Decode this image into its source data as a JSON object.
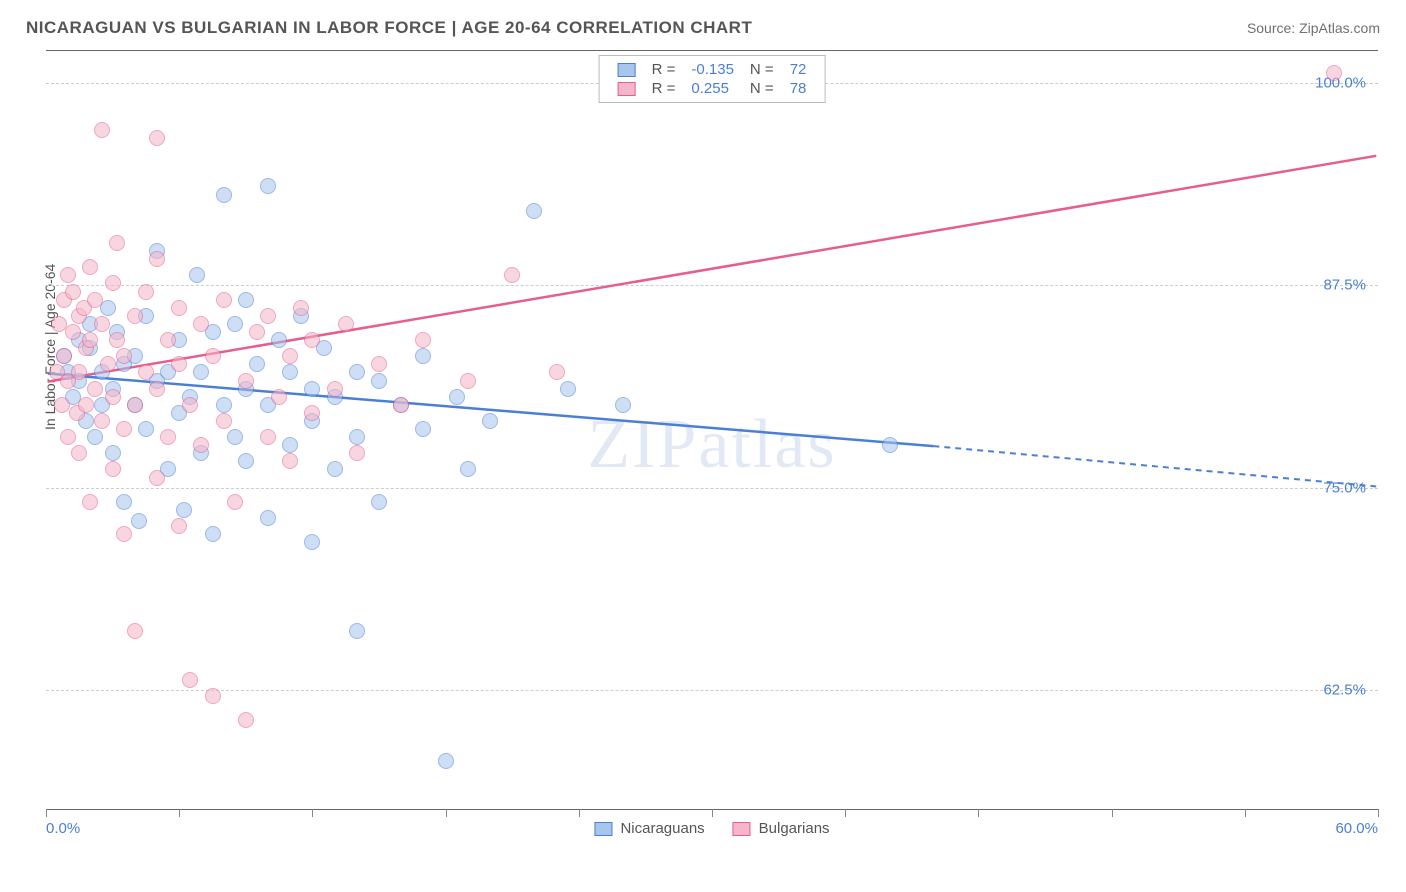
{
  "title": "NICARAGUAN VS BULGARIAN IN LABOR FORCE | AGE 20-64 CORRELATION CHART",
  "source_label": "Source: ",
  "source_name": "ZipAtlas.com",
  "ylabel": "In Labor Force | Age 20-64",
  "watermark": "ZIPatlas",
  "chart": {
    "type": "scatter",
    "xlim": [
      0,
      60
    ],
    "ylim": [
      55,
      102
    ],
    "x_ticks": [
      0,
      6,
      12,
      18,
      24,
      30,
      36,
      42,
      48,
      54,
      60
    ],
    "y_gridlines": [
      62.5,
      75.0,
      87.5,
      100.0
    ],
    "y_tick_labels": [
      "62.5%",
      "75.0%",
      "87.5%",
      "100.0%"
    ],
    "x_left_label": "0.0%",
    "x_right_label": "60.0%",
    "background_color": "#ffffff",
    "grid_color": "#cccccc",
    "axis_text_color": "#4a7fd6",
    "marker_radius": 8,
    "marker_opacity": 0.55,
    "series": [
      {
        "name": "Nicaraguans",
        "color_fill": "#a7c5ed",
        "color_stroke": "#4a7fd6",
        "R": "-0.135",
        "N": "72",
        "trend": {
          "x1": 0,
          "y1": 82.0,
          "x2": 40,
          "y2": 77.5,
          "extrap_x2": 60,
          "extrap_y2": 75.0
        },
        "points": [
          [
            0.8,
            83
          ],
          [
            1.0,
            82
          ],
          [
            1.2,
            80.5
          ],
          [
            1.5,
            84
          ],
          [
            1.5,
            81.5
          ],
          [
            1.8,
            79
          ],
          [
            2.0,
            83.5
          ],
          [
            2.0,
            85
          ],
          [
            2.2,
            78
          ],
          [
            2.5,
            82
          ],
          [
            2.5,
            80
          ],
          [
            2.8,
            86
          ],
          [
            3.0,
            81
          ],
          [
            3.0,
            77
          ],
          [
            3.2,
            84.5
          ],
          [
            3.5,
            82.5
          ],
          [
            3.5,
            74
          ],
          [
            4.0,
            80
          ],
          [
            4.0,
            83
          ],
          [
            4.2,
            72.8
          ],
          [
            4.5,
            85.5
          ],
          [
            4.5,
            78.5
          ],
          [
            5.0,
            81.5
          ],
          [
            5.0,
            89.5
          ],
          [
            5.5,
            76
          ],
          [
            5.5,
            82
          ],
          [
            6.0,
            79.5
          ],
          [
            6.0,
            84
          ],
          [
            6.2,
            73.5
          ],
          [
            6.5,
            80.5
          ],
          [
            6.8,
            88
          ],
          [
            7.0,
            82
          ],
          [
            7.0,
            77
          ],
          [
            7.5,
            84.5
          ],
          [
            7.5,
            72
          ],
          [
            8.0,
            80
          ],
          [
            8.0,
            93
          ],
          [
            8.5,
            78
          ],
          [
            8.5,
            85
          ],
          [
            9.0,
            81
          ],
          [
            9.0,
            76.5
          ],
          [
            9.0,
            86.5
          ],
          [
            9.5,
            82.5
          ],
          [
            10.0,
            93.5
          ],
          [
            10.0,
            73
          ],
          [
            10.0,
            80
          ],
          [
            10.5,
            84
          ],
          [
            11.0,
            77.5
          ],
          [
            11.0,
            82
          ],
          [
            11.5,
            85.5
          ],
          [
            12.0,
            79
          ],
          [
            12.0,
            81
          ],
          [
            12.0,
            71.5
          ],
          [
            12.5,
            83.5
          ],
          [
            13.0,
            76
          ],
          [
            13.0,
            80.5
          ],
          [
            14.0,
            82
          ],
          [
            14.0,
            78
          ],
          [
            14.0,
            66
          ],
          [
            15.0,
            74
          ],
          [
            15.0,
            81.5
          ],
          [
            16.0,
            80
          ],
          [
            17.0,
            78.5
          ],
          [
            17.0,
            83
          ],
          [
            18.0,
            58
          ],
          [
            18.5,
            80.5
          ],
          [
            19.0,
            76
          ],
          [
            20.0,
            79
          ],
          [
            22.0,
            92
          ],
          [
            23.5,
            81
          ],
          [
            26.0,
            80
          ],
          [
            38.0,
            77.5
          ]
        ]
      },
      {
        "name": "Bulgarians",
        "color_fill": "#f4b6c8",
        "color_stroke": "#e75d8e",
        "R": "0.255",
        "N": "78",
        "trend": {
          "x1": 0,
          "y1": 81.5,
          "x2": 60,
          "y2": 95.5
        },
        "points": [
          [
            0.5,
            82
          ],
          [
            0.6,
            85
          ],
          [
            0.7,
            80
          ],
          [
            0.8,
            86.5
          ],
          [
            0.8,
            83
          ],
          [
            1.0,
            88
          ],
          [
            1.0,
            81.5
          ],
          [
            1.0,
            78
          ],
          [
            1.2,
            84.5
          ],
          [
            1.2,
            87
          ],
          [
            1.4,
            79.5
          ],
          [
            1.5,
            85.5
          ],
          [
            1.5,
            82
          ],
          [
            1.5,
            77
          ],
          [
            1.7,
            86
          ],
          [
            1.8,
            83.5
          ],
          [
            1.8,
            80
          ],
          [
            2.0,
            88.5
          ],
          [
            2.0,
            84
          ],
          [
            2.0,
            74
          ],
          [
            2.2,
            81
          ],
          [
            2.2,
            86.5
          ],
          [
            2.5,
            79
          ],
          [
            2.5,
            85
          ],
          [
            2.5,
            97
          ],
          [
            2.8,
            82.5
          ],
          [
            3.0,
            87.5
          ],
          [
            3.0,
            76
          ],
          [
            3.0,
            80.5
          ],
          [
            3.2,
            84
          ],
          [
            3.2,
            90
          ],
          [
            3.5,
            78.5
          ],
          [
            3.5,
            83
          ],
          [
            3.5,
            72
          ],
          [
            4.0,
            85.5
          ],
          [
            4.0,
            80
          ],
          [
            4.0,
            66
          ],
          [
            4.5,
            82
          ],
          [
            4.5,
            87
          ],
          [
            5.0,
            75.5
          ],
          [
            5.0,
            89
          ],
          [
            5.0,
            81
          ],
          [
            5.0,
            96.5
          ],
          [
            5.5,
            84
          ],
          [
            5.5,
            78
          ],
          [
            6.0,
            86
          ],
          [
            6.0,
            72.5
          ],
          [
            6.0,
            82.5
          ],
          [
            6.5,
            80
          ],
          [
            6.5,
            63
          ],
          [
            7.0,
            85
          ],
          [
            7.0,
            77.5
          ],
          [
            7.5,
            83
          ],
          [
            7.5,
            62
          ],
          [
            8.0,
            79
          ],
          [
            8.0,
            86.5
          ],
          [
            8.5,
            74
          ],
          [
            9.0,
            60.5
          ],
          [
            9.0,
            81.5
          ],
          [
            9.5,
            84.5
          ],
          [
            10.0,
            78
          ],
          [
            10.0,
            85.5
          ],
          [
            10.5,
            80.5
          ],
          [
            11.0,
            76.5
          ],
          [
            11.0,
            83
          ],
          [
            11.5,
            86
          ],
          [
            12.0,
            79.5
          ],
          [
            12.0,
            84
          ],
          [
            13.0,
            81
          ],
          [
            13.5,
            85
          ],
          [
            14.0,
            77
          ],
          [
            15.0,
            82.5
          ],
          [
            16.0,
            80
          ],
          [
            17.0,
            84
          ],
          [
            19.0,
            81.5
          ],
          [
            21.0,
            88
          ],
          [
            23.0,
            82
          ],
          [
            58.0,
            100.5
          ]
        ]
      }
    ]
  },
  "legend_top": {
    "rows": [
      {
        "swatch_fill": "#a7c5ed",
        "swatch_stroke": "#4a7fd6",
        "R_label": "R =",
        "R_val": "-0.135",
        "N_label": "N =",
        "N_val": "72"
      },
      {
        "swatch_fill": "#f4b6c8",
        "swatch_stroke": "#e75d8e",
        "R_label": "R =",
        "R_val": "0.255",
        "N_label": "N =",
        "N_val": "78"
      }
    ]
  },
  "legend_bottom": [
    {
      "swatch_fill": "#a7c5ed",
      "swatch_stroke": "#4a7fd6",
      "label": "Nicaraguans"
    },
    {
      "swatch_fill": "#f4b6c8",
      "swatch_stroke": "#e75d8e",
      "label": "Bulgarians"
    }
  ]
}
